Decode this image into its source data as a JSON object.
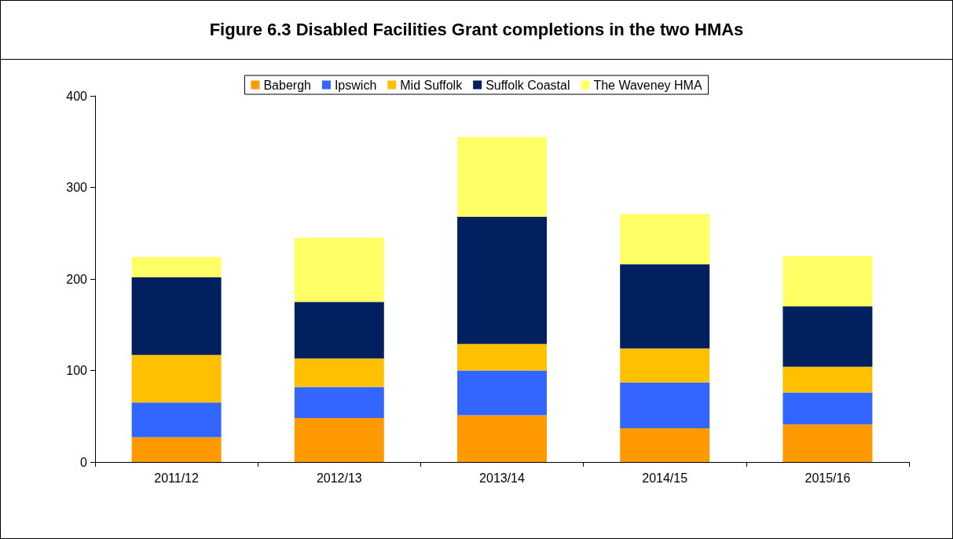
{
  "chart_data": {
    "type": "bar",
    "title": "Figure 6.3 Disabled Facilities Grant completions in the two HMAs",
    "categories": [
      "2011/12",
      "2012/13",
      "2013/14",
      "2014/15",
      "2015/16"
    ],
    "stacked": true,
    "series": [
      {
        "name": "Babergh",
        "color": "#ff9900",
        "values": [
          27,
          48,
          51,
          37,
          41
        ]
      },
      {
        "name": "Ipswich",
        "color": "#3366ff",
        "values": [
          38,
          34,
          49,
          50,
          35
        ]
      },
      {
        "name": "Mid Suffolk",
        "color": "#ffc000",
        "values": [
          52,
          31,
          29,
          37,
          28
        ]
      },
      {
        "name": "Suffolk Coastal",
        "color": "#002060",
        "values": [
          85,
          62,
          139,
          92,
          66
        ]
      },
      {
        "name": "The Waveney HMA",
        "color": "#ffff66",
        "values": [
          22,
          70,
          87,
          55,
          55
        ]
      }
    ],
    "ylim": [
      0,
      400
    ],
    "yticks": [
      0,
      100,
      200,
      300,
      400
    ],
    "grid": false,
    "legend": "top"
  }
}
